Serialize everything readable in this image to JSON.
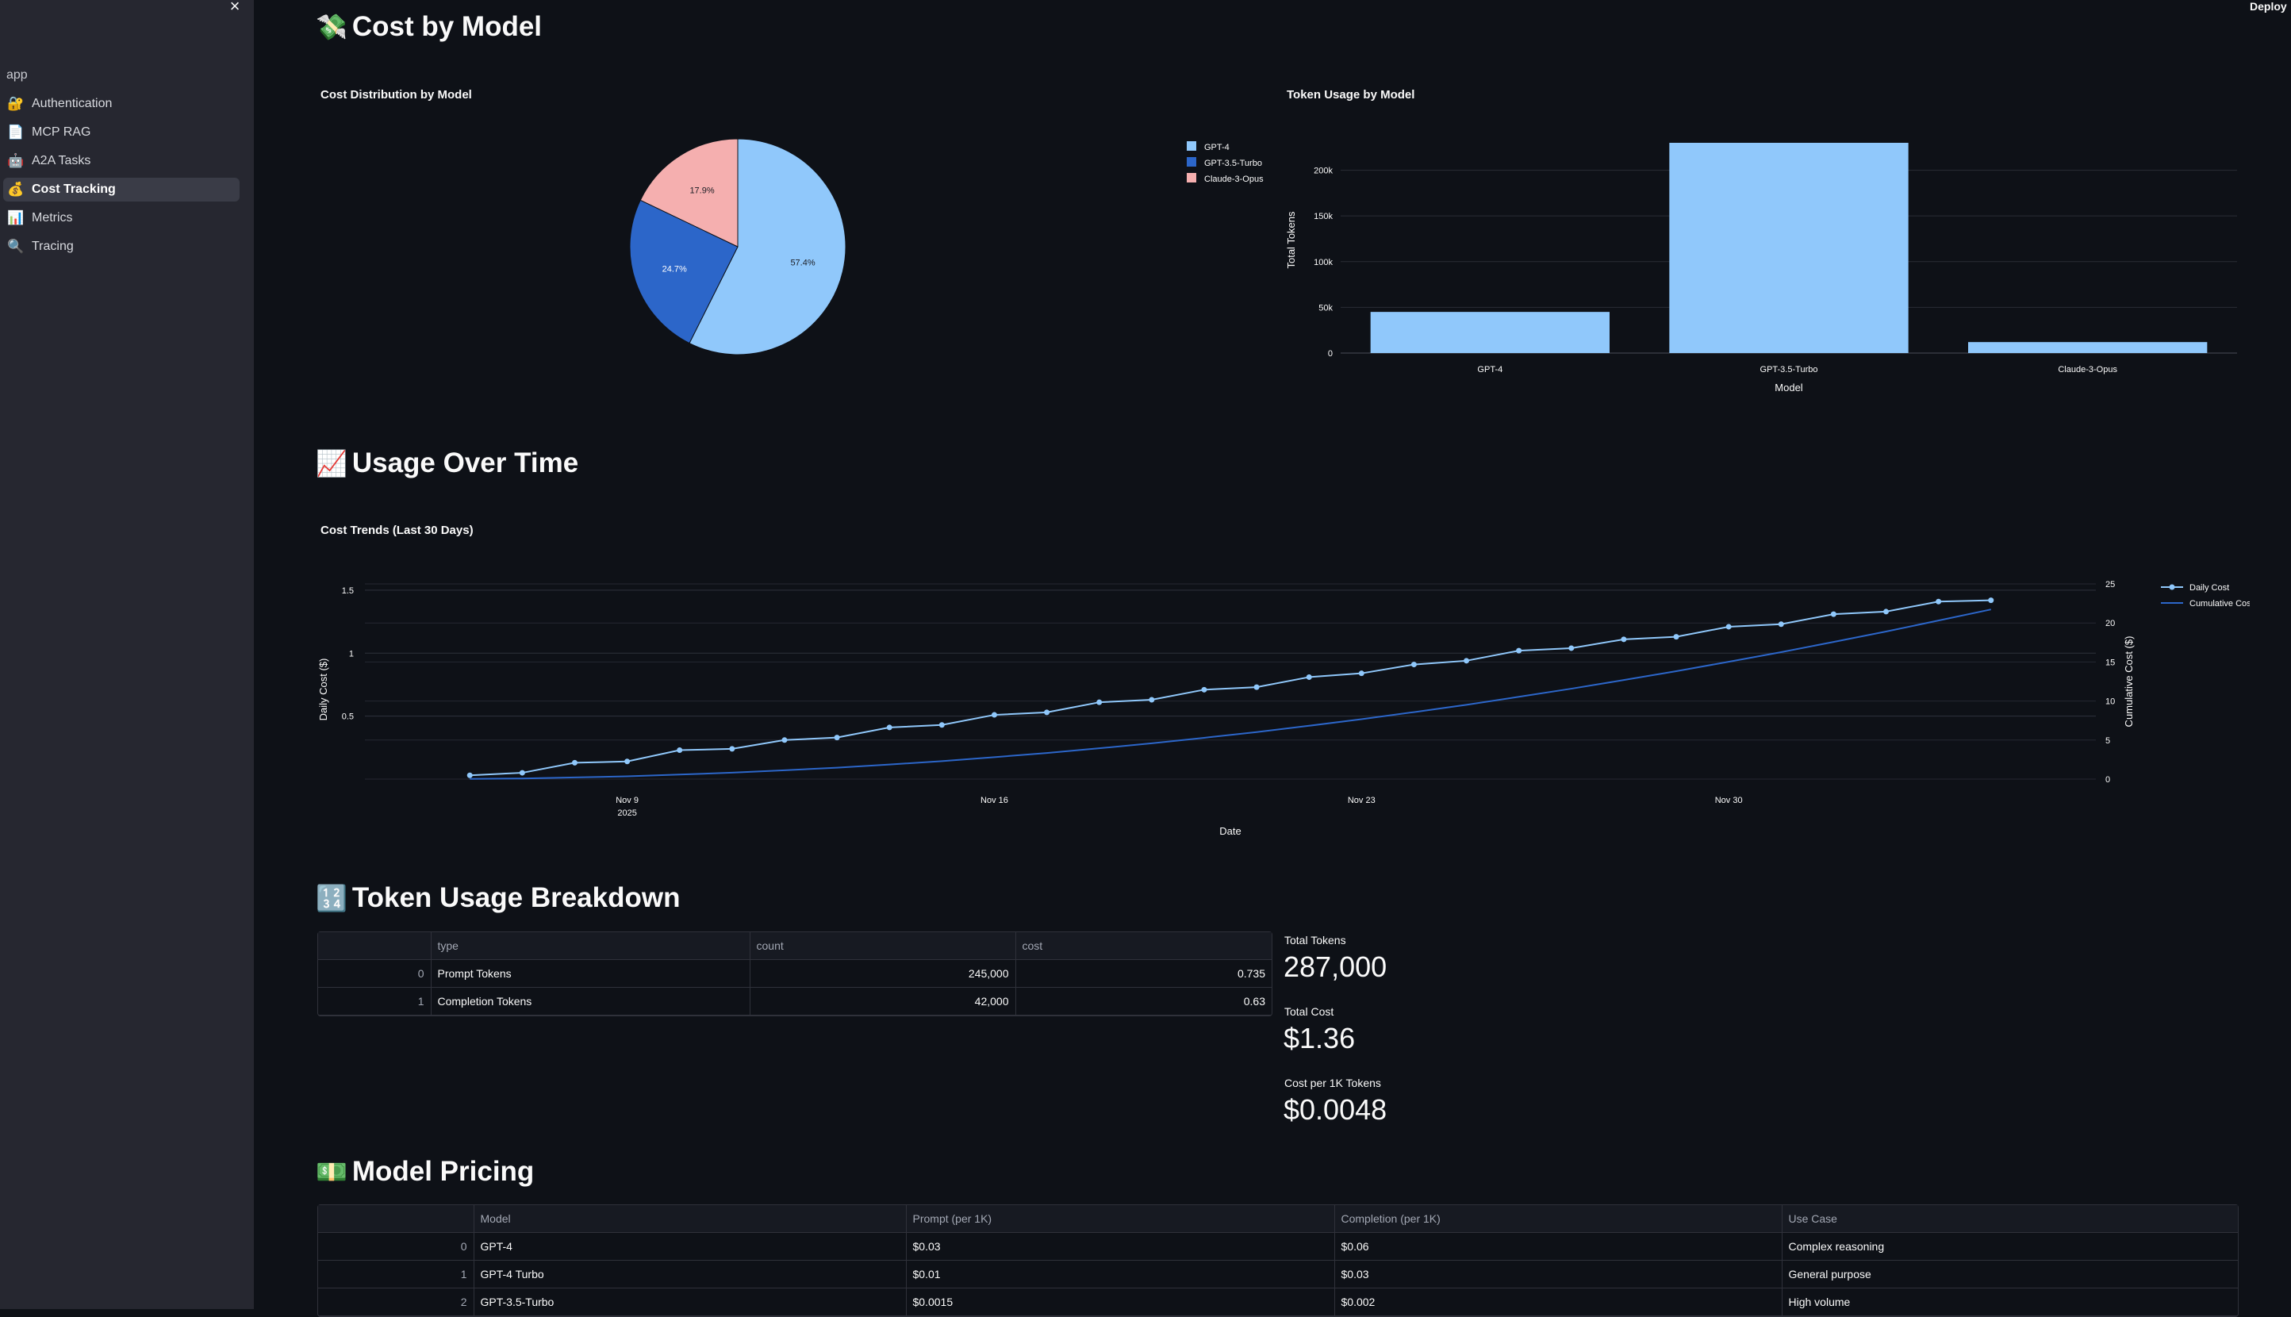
{
  "header": {
    "deploy_label": "Deploy"
  },
  "sidebar": {
    "header": "app",
    "close_glyph": "×",
    "items": [
      {
        "label": "Authentication",
        "icon": "🔐",
        "icon_name": "lock-key-icon",
        "active": false
      },
      {
        "label": "MCP RAG",
        "icon": "📄",
        "icon_name": "document-icon",
        "active": false
      },
      {
        "label": "A2A Tasks",
        "icon": "🤖",
        "icon_name": "robot-icon",
        "active": false
      },
      {
        "label": "Cost Tracking",
        "icon": "💰",
        "icon_name": "money-bag-icon",
        "active": true
      },
      {
        "label": "Metrics",
        "icon": "📊",
        "icon_name": "bar-chart-icon",
        "active": false
      },
      {
        "label": "Tracing",
        "icon": "🔍",
        "icon_name": "magnifier-icon",
        "active": false
      }
    ]
  },
  "sections": {
    "cost_by_model": {
      "emoji": "💸",
      "title": "Cost by Model"
    },
    "usage_over_time": {
      "emoji": "📈",
      "title": "Usage Over Time"
    },
    "token_breakdown": {
      "emoji": "🔢",
      "title": "Token Usage Breakdown"
    },
    "model_pricing": {
      "emoji": "💵",
      "title": "Model Pricing"
    }
  },
  "colors": {
    "background": "#0e1117",
    "sidebar": "#262730",
    "gpt4": "#90c8fb",
    "gpt35": "#2c66c9",
    "claude": "#f5afaf",
    "line": "#90c8fb",
    "cumulative": "#2c66c9"
  },
  "chart_data": [
    {
      "type": "pie",
      "title": "Cost Distribution by Model",
      "labels": [
        "GPT-4",
        "GPT-3.5-Turbo",
        "Claude-3-Opus"
      ],
      "values": [
        57.4,
        24.7,
        17.9
      ],
      "value_labels": [
        "57.4%",
        "24.7%",
        "17.9%"
      ],
      "legend": "top-right"
    },
    {
      "type": "bar",
      "title": "Token Usage by Model",
      "categories": [
        "GPT-4",
        "GPT-3.5-Turbo",
        "Claude-3-Opus"
      ],
      "values": [
        45000,
        230000,
        12000
      ],
      "xlabel": "Model",
      "ylabel": "Total Tokens",
      "ylim": [
        0,
        230000
      ],
      "yticks": [
        0,
        50000,
        100000,
        150000,
        200000
      ],
      "ytick_labels": [
        "0",
        "50k",
        "100k",
        "150k",
        "200k"
      ],
      "grid": true
    },
    {
      "type": "line",
      "title": "Cost Trends (Last 30 Days)",
      "xlabel": "Date",
      "ylabel": "Daily Cost ($)",
      "y2label": "Cumulative Cost ($)",
      "x": [
        "2025-11-06",
        "2025-11-07",
        "2025-11-08",
        "2025-11-09",
        "2025-11-10",
        "2025-11-11",
        "2025-11-12",
        "2025-11-13",
        "2025-11-14",
        "2025-11-15",
        "2025-11-16",
        "2025-11-17",
        "2025-11-18",
        "2025-11-19",
        "2025-11-20",
        "2025-11-21",
        "2025-11-22",
        "2025-11-23",
        "2025-11-24",
        "2025-11-25",
        "2025-11-26",
        "2025-11-27",
        "2025-11-28",
        "2025-11-29",
        "2025-11-30",
        "2025-12-01",
        "2025-12-02",
        "2025-12-03",
        "2025-12-04",
        "2025-12-05"
      ],
      "xticks": [
        "2025-11-09",
        "2025-11-16",
        "2025-11-23",
        "2025-11-30"
      ],
      "xtick_labels": [
        "Nov 9",
        "Nov 16",
        "Nov 23",
        "Nov 30"
      ],
      "xtick_sublabel": "2025",
      "xlim": [
        "2025-11-04",
        "2025-12-07"
      ],
      "ylim": [
        0,
        1.55
      ],
      "y2lim": [
        0,
        25
      ],
      "yticks": [
        0.5,
        1,
        1.5
      ],
      "ytick_labels": [
        "0.5",
        "1",
        "1.5"
      ],
      "y2ticks": [
        0,
        5,
        10,
        15,
        20,
        25
      ],
      "y2tick_labels": [
        "0",
        "5",
        "10",
        "15",
        "20",
        "25"
      ],
      "series": [
        {
          "name": "Daily Cost",
          "axis": "y",
          "mode": "lines+markers",
          "values": [
            0.03,
            0.05,
            0.13,
            0.14,
            0.23,
            0.24,
            0.31,
            0.33,
            0.41,
            0.43,
            0.51,
            0.53,
            0.61,
            0.63,
            0.71,
            0.73,
            0.81,
            0.84,
            0.91,
            0.94,
            1.02,
            1.04,
            1.11,
            1.13,
            1.21,
            1.23,
            1.31,
            1.33,
            1.41,
            1.42
          ]
        },
        {
          "name": "Cumulative Cost",
          "axis": "y2",
          "mode": "lines",
          "values": [
            0.03,
            0.08,
            0.21,
            0.35,
            0.58,
            0.82,
            1.13,
            1.46,
            1.87,
            2.3,
            2.81,
            3.34,
            3.95,
            4.58,
            5.29,
            6.02,
            6.83,
            7.67,
            8.58,
            9.52,
            10.54,
            11.58,
            12.69,
            13.82,
            15.03,
            16.26,
            17.57,
            18.9,
            20.31,
            21.73
          ]
        }
      ],
      "legend": "top-right",
      "grid": true
    }
  ],
  "token_table": {
    "columns": [
      "",
      "type",
      "count",
      "cost"
    ],
    "rows": [
      [
        "0",
        "Prompt Tokens",
        "245,000",
        "0.735"
      ],
      [
        "1",
        "Completion Tokens",
        "42,000",
        "0.63"
      ]
    ]
  },
  "metrics": [
    {
      "label": "Total Tokens",
      "value": "287,000"
    },
    {
      "label": "Total Cost",
      "value": "$1.36"
    },
    {
      "label": "Cost per 1K Tokens",
      "value": "$0.0048"
    }
  ],
  "pricing_table": {
    "columns": [
      "",
      "Model",
      "Prompt (per 1K)",
      "Completion (per 1K)",
      "Use Case"
    ],
    "rows": [
      [
        "0",
        "GPT-4",
        "$0.03",
        "$0.06",
        "Complex reasoning"
      ],
      [
        "1",
        "GPT-4 Turbo",
        "$0.01",
        "$0.03",
        "General purpose"
      ],
      [
        "2",
        "GPT-3.5-Turbo",
        "$0.0015",
        "$0.002",
        "High volume"
      ]
    ]
  }
}
